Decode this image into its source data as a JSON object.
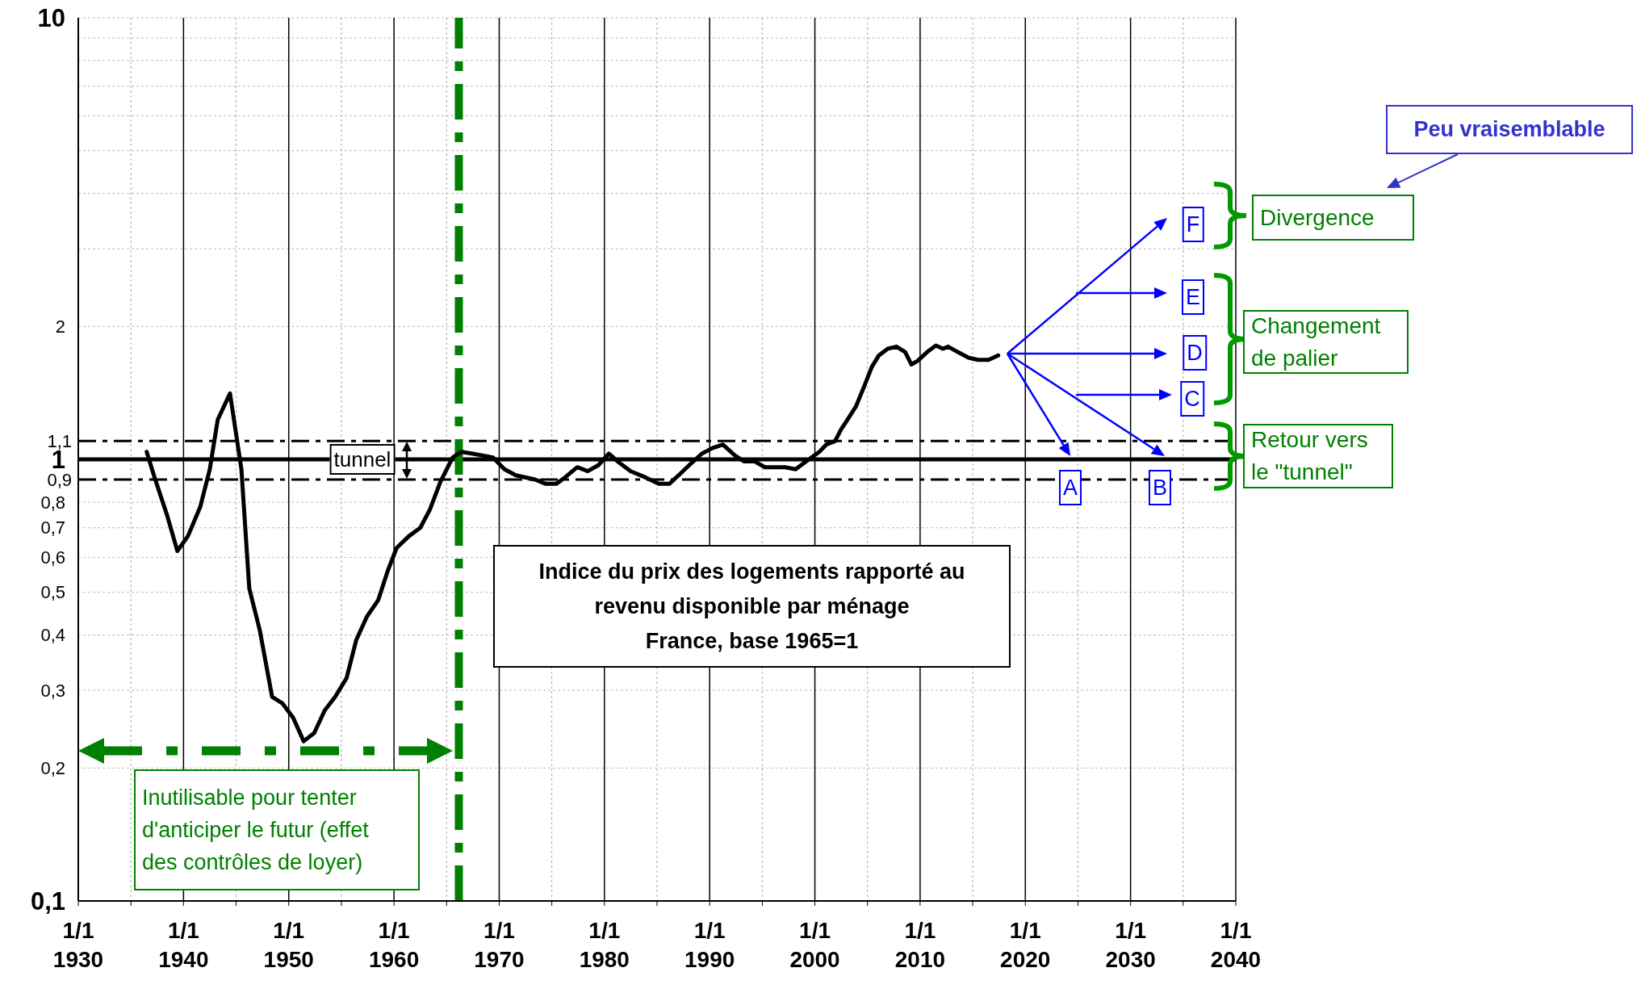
{
  "chart_data": {
    "type": "line",
    "title": "Indice du prix des logements rapporté au\nrevenu disponible par ménage\nFrance, base 1965=1",
    "series": [
      {
        "color": "#000000",
        "x": [
          "1936-07",
          "1937-04",
          "1938-06",
          "1939-06",
          "1940-06",
          "1941-08",
          "1942-07",
          "1943-04",
          "1944-06",
          "1945-07",
          "1946-04",
          "1947-04",
          "1948-06",
          "1949-06",
          "1950-06",
          "1951-06",
          "1952-06",
          "1953-06",
          "1954-06",
          "1955-07",
          "1956-06",
          "1957-06",
          "1958-07",
          "1959-06",
          "1960-04",
          "1961-06",
          "1962-07",
          "1963-06",
          "1964-06",
          "1965-08",
          "1966-06",
          "1967-07",
          "1969-06",
          "1970-07",
          "1971-08",
          "1973-06",
          "1974-06",
          "1975-06",
          "1976-04",
          "1977-06",
          "1978-06",
          "1979-06",
          "1980-06",
          "1981-04",
          "1982-07",
          "1983-12",
          "1985-03",
          "1986-03",
          "1987-04",
          "1988-04",
          "1989-04",
          "1990-04",
          "1991-04",
          "1992-06",
          "1993-04",
          "1994-04",
          "1995-04",
          "1997-03",
          "1998-03",
          "1999-03",
          "2000-06",
          "2001-02",
          "2001-12",
          "2002-07",
          "2003-01",
          "2003-12",
          "2004-09",
          "2005-06",
          "2006-02",
          "2006-12",
          "2007-10",
          "2008-08",
          "2009-03",
          "2009-10",
          "2010-09",
          "2011-07",
          "2012-03",
          "2012-09",
          "2013-08",
          "2014-08",
          "2015-07",
          "2016-07",
          "2017-06"
        ],
        "values": [
          1.04,
          0.91,
          0.75,
          0.62,
          0.67,
          0.78,
          0.95,
          1.23,
          1.41,
          0.95,
          0.51,
          0.41,
          0.29,
          0.28,
          0.26,
          0.23,
          0.24,
          0.27,
          0.29,
          0.32,
          0.39,
          0.44,
          0.48,
          0.56,
          0.63,
          0.67,
          0.7,
          0.77,
          0.89,
          1.01,
          1.04,
          1.03,
          1.01,
          0.95,
          0.92,
          0.9,
          0.88,
          0.88,
          0.91,
          0.96,
          0.94,
          0.97,
          1.03,
          0.99,
          0.94,
          0.91,
          0.88,
          0.88,
          0.93,
          0.98,
          1.03,
          1.06,
          1.08,
          1.02,
          0.99,
          0.99,
          0.96,
          0.96,
          0.95,
          0.99,
          1.04,
          1.08,
          1.1,
          1.17,
          1.22,
          1.32,
          1.46,
          1.62,
          1.72,
          1.78,
          1.8,
          1.75,
          1.64,
          1.67,
          1.75,
          1.81,
          1.78,
          1.8,
          1.75,
          1.7,
          1.68,
          1.68,
          1.72
        ]
      }
    ],
    "xlim": [
      "1930-01-01",
      "2040-01-01"
    ],
    "xticks": [
      {
        "value": "1930-01-01",
        "label": "1/1 1930"
      },
      {
        "value": "1935-01-01",
        "label": null
      },
      {
        "value": "1940-01-01",
        "label": "1/1 1940"
      },
      {
        "value": "1945-01-01",
        "label": null
      },
      {
        "value": "1950-01-01",
        "label": "1/1 1950"
      },
      {
        "value": "1955-01-01",
        "label": null
      },
      {
        "value": "1960-01-01",
        "label": "1/1 1960"
      },
      {
        "value": "1965-01-01",
        "label": null
      },
      {
        "value": "1970-01-01",
        "label": "1/1 1970"
      },
      {
        "value": "1975-01-01",
        "label": null
      },
      {
        "value": "1980-01-01",
        "label": "1/1 1980"
      },
      {
        "value": "1985-01-01",
        "label": null
      },
      {
        "value": "1990-01-01",
        "label": "1/1 1990"
      },
      {
        "value": "1995-01-01",
        "label": null
      },
      {
        "value": "2000-01-01",
        "label": "1/1 2000"
      },
      {
        "value": "2005-01-01",
        "label": null
      },
      {
        "value": "2010-01-01",
        "label": "1/1 2010"
      },
      {
        "value": "2015-01-01",
        "label": null
      },
      {
        "value": "2020-01-01",
        "label": "1/1 2020"
      },
      {
        "value": "2025-01-01",
        "label": null
      },
      {
        "value": "2030-01-01",
        "label": "1/1 2030"
      },
      {
        "value": "2035-01-01",
        "label": null
      },
      {
        "value": "2040-01-01",
        "label": "1/1 2040"
      }
    ],
    "ylim": [
      0.1,
      10
    ],
    "yticks": [
      {
        "value": 0.1,
        "label": "0,1"
      },
      {
        "value": 0.2,
        "label": "0,2"
      },
      {
        "value": 0.3,
        "label": "0,3"
      },
      {
        "value": 0.4,
        "label": "0,4"
      },
      {
        "value": 0.5,
        "label": "0,5"
      },
      {
        "value": 0.6,
        "label": "0,6"
      },
      {
        "value": 0.7,
        "label": "0,7"
      },
      {
        "value": 0.8,
        "label": "0,8"
      },
      {
        "value": 0.9,
        "label": null
      },
      1,
      2,
      {
        "value": 3,
        "label": null
      },
      {
        "value": 4,
        "label": null
      },
      {
        "value": 5,
        "label": null
      },
      {
        "value": 6,
        "label": null
      },
      {
        "value": 7,
        "label": null
      },
      {
        "value": 8,
        "label": null
      },
      {
        "value": 9,
        "label": null
      },
      10
    ],
    "log": "y",
    "grid": true,
    "ref_lines": [
      {
        "axis": "y",
        "value": 1,
        "color": "#000000",
        "line_style": "solid"
      },
      {
        "axis": "y",
        "value": 1.1,
        "color": "#000000",
        "line_style": "dashed",
        "label": "1,1"
      },
      {
        "axis": "y",
        "value": 0.9,
        "color": "#000000",
        "line_style": "dashed",
        "label": "0,9"
      },
      {
        "axis": "x",
        "value": "1966-03",
        "color": "#008000",
        "line_style": "dashed"
      }
    ],
    "annotations": [
      {
        "text": "tunnel",
        "x": "1957-01",
        "y": 1
      },
      "Inutilisable pour tenter\nd'anticiper le futur (effet\ndes contrôles de loyer)",
      "Peu vraisemblable",
      "Divergence",
      "Changement\nde palier",
      "Retour vers\nle \"tunnel\"",
      "A",
      "B",
      "C",
      "D",
      "E",
      "F"
    ]
  }
}
